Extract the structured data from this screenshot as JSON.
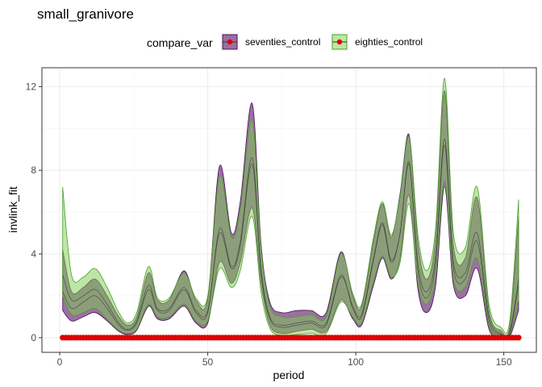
{
  "chart_data": {
    "type": "area",
    "title": "small_granivore",
    "xlabel": "period",
    "ylabel": "invlink_fit",
    "xlim": [
      -6,
      161
    ],
    "ylim": [
      -0.7,
      12.9
    ],
    "xticks": [
      0,
      50,
      100,
      150
    ],
    "yticks": [
      0,
      4,
      8,
      12
    ],
    "grid": true,
    "legend": {
      "title": "compare_var",
      "position": "top",
      "entries": [
        "seventies_control",
        "eighties_control"
      ]
    },
    "colors": {
      "seventies_fill": "#7b3f86",
      "seventies_stroke": "#4a0f56",
      "eighties_fill": "#7ccd4e",
      "eighties_stroke": "#4aa02a",
      "points": "#e00000",
      "line": "#333333"
    },
    "points": {
      "x_start": 1,
      "x_end": 155,
      "y": 0
    },
    "series": [
      {
        "name": "seventies_control",
        "x": [
          1,
          4,
          8,
          12,
          16,
          20,
          23,
          26,
          30,
          33,
          37,
          42,
          46,
          50,
          54,
          58,
          61,
          65,
          68,
          71,
          75,
          80,
          85,
          90,
          95,
          99,
          102,
          106,
          109,
          112,
          115,
          118,
          121,
          124,
          127,
          130,
          133,
          137,
          141,
          145,
          149,
          152,
          155
        ],
        "lower": [
          1.3,
          0.8,
          1.0,
          1.2,
          0.8,
          0.3,
          0.15,
          0.35,
          1.5,
          0.9,
          0.9,
          1.5,
          0.7,
          0.7,
          3.6,
          2.6,
          3.6,
          6.2,
          2.6,
          0.6,
          0.2,
          0.3,
          0.4,
          0.3,
          1.8,
          0.9,
          0.6,
          2.5,
          3.8,
          2.8,
          3.8,
          6.8,
          2.3,
          1.2,
          2.5,
          7.2,
          2.5,
          2.0,
          3.3,
          0.4,
          0.0,
          0.05,
          1.3
        ],
        "mid": [
          2.2,
          1.4,
          1.7,
          2.0,
          1.4,
          0.6,
          0.35,
          0.7,
          2.3,
          1.3,
          1.3,
          2.3,
          1.2,
          1.2,
          5.2,
          3.4,
          4.6,
          8.6,
          3.3,
          1.0,
          0.6,
          0.7,
          0.8,
          0.7,
          3.0,
          1.4,
          1.0,
          3.7,
          5.4,
          3.6,
          5.0,
          8.4,
          3.2,
          1.9,
          3.6,
          9.2,
          3.3,
          2.8,
          4.6,
          0.8,
          0.15,
          0.2,
          2.5
        ],
        "upper": [
          4.2,
          2.2,
          2.4,
          2.8,
          2.0,
          1.0,
          0.6,
          1.0,
          3.1,
          1.8,
          1.8,
          3.2,
          1.8,
          1.9,
          8.2,
          5.0,
          6.5,
          11.2,
          4.5,
          1.7,
          1.2,
          1.3,
          1.3,
          1.2,
          4.1,
          2.0,
          1.5,
          4.6,
          6.4,
          4.8,
          6.9,
          9.7,
          4.5,
          2.8,
          4.8,
          11.8,
          4.4,
          3.8,
          6.7,
          1.3,
          0.35,
          0.55,
          5.8
        ]
      },
      {
        "name": "eighties_control",
        "x": [
          1,
          4,
          8,
          12,
          16,
          20,
          23,
          26,
          30,
          33,
          37,
          42,
          46,
          50,
          54,
          58,
          61,
          65,
          68,
          71,
          75,
          80,
          85,
          90,
          95,
          99,
          102,
          106,
          109,
          112,
          115,
          118,
          121,
          124,
          127,
          130,
          133,
          137,
          141,
          145,
          149,
          152,
          155
        ],
        "lower": [
          2.0,
          1.1,
          1.2,
          1.4,
          0.9,
          0.35,
          0.2,
          0.4,
          1.6,
          1.0,
          1.0,
          1.6,
          0.8,
          0.8,
          3.3,
          2.4,
          3.2,
          5.8,
          2.2,
          0.45,
          0.1,
          0.15,
          0.2,
          0.2,
          1.7,
          1.0,
          0.7,
          2.7,
          3.9,
          2.9,
          3.6,
          6.4,
          2.6,
          1.6,
          3.0,
          7.5,
          2.8,
          2.4,
          3.8,
          0.6,
          0.05,
          0.15,
          1.8
        ],
        "mid": [
          3.0,
          1.8,
          2.0,
          2.3,
          1.6,
          0.7,
          0.4,
          0.8,
          2.5,
          1.4,
          1.4,
          2.4,
          1.3,
          1.3,
          5.0,
          3.3,
          4.4,
          8.3,
          3.1,
          0.9,
          0.5,
          0.6,
          0.7,
          0.6,
          2.9,
          1.5,
          1.1,
          3.8,
          5.5,
          3.7,
          5.0,
          8.3,
          3.5,
          2.2,
          3.9,
          9.5,
          3.6,
          3.1,
          5.0,
          1.0,
          0.2,
          0.3,
          2.8
        ],
        "upper": [
          7.2,
          3.0,
          2.9,
          3.3,
          2.4,
          1.2,
          0.7,
          1.2,
          3.4,
          1.9,
          1.9,
          3.1,
          1.9,
          2.0,
          7.7,
          4.8,
          6.1,
          10.4,
          4.3,
          1.5,
          1.0,
          1.0,
          1.1,
          1.0,
          4.0,
          2.1,
          1.6,
          4.8,
          6.5,
          4.9,
          6.8,
          9.6,
          4.9,
          3.2,
          5.3,
          12.4,
          5.0,
          4.3,
          7.2,
          1.6,
          0.5,
          0.8,
          6.6
        ]
      }
    ]
  }
}
